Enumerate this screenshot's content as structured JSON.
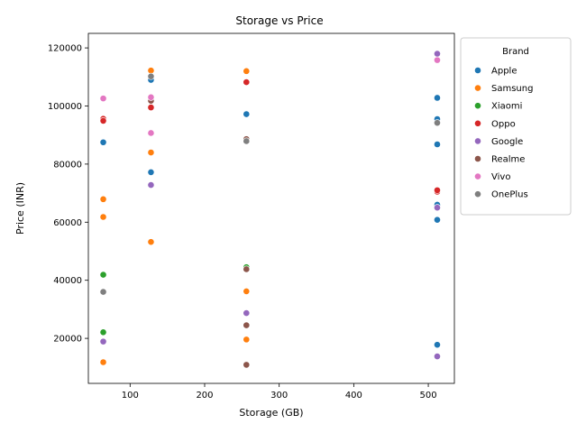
{
  "chart_data": {
    "type": "scatter",
    "title": "Storage vs Price",
    "xlabel": "Storage (GB)",
    "ylabel": "Price (INR)",
    "xlim": [
      44,
      535
    ],
    "ylim": [
      4500,
      125000
    ],
    "xticks": [
      100,
      200,
      300,
      400,
      500
    ],
    "xtick_labels": [
      "100",
      "200",
      "300",
      "400",
      "500"
    ],
    "yticks": [
      20000,
      40000,
      60000,
      80000,
      100000,
      120000
    ],
    "ytick_labels": [
      "20000",
      "40000",
      "60000",
      "80000",
      "100000",
      "120000"
    ],
    "grid": false,
    "legend": {
      "title": "Brand",
      "placement": "outside right, top"
    },
    "series": [
      {
        "name": "Apple",
        "color": "#1f77b4",
        "points": [
          [
            64,
            87500
          ],
          [
            128,
            109000
          ],
          [
            128,
            77200
          ],
          [
            256,
            97200
          ],
          [
            512,
            102800
          ],
          [
            512,
            95500
          ],
          [
            512,
            86800
          ],
          [
            512,
            66000
          ],
          [
            512,
            60800
          ],
          [
            512,
            17800
          ]
        ]
      },
      {
        "name": "Samsung",
        "color": "#ff7f0e",
        "points": [
          [
            64,
            67900
          ],
          [
            64,
            61800
          ],
          [
            64,
            11800
          ],
          [
            128,
            112200
          ],
          [
            128,
            84000
          ],
          [
            128,
            53200
          ],
          [
            256,
            112000
          ],
          [
            256,
            36200
          ],
          [
            256,
            19600
          ]
        ]
      },
      {
        "name": "Xiaomi",
        "color": "#2ca02c",
        "points": [
          [
            64,
            41900
          ],
          [
            64,
            22100
          ],
          [
            256,
            44500
          ]
        ]
      },
      {
        "name": "Oppo",
        "color": "#d62728",
        "points": [
          [
            64,
            95600
          ],
          [
            64,
            94900
          ],
          [
            128,
            99500
          ],
          [
            256,
            108200
          ],
          [
            512,
            70500
          ],
          [
            512,
            71000
          ]
        ]
      },
      {
        "name": "Google",
        "color": "#9467bd",
        "points": [
          [
            64,
            18900
          ],
          [
            128,
            72800
          ],
          [
            256,
            28700
          ],
          [
            512,
            118000
          ],
          [
            512,
            65000
          ],
          [
            512,
            13800
          ]
        ]
      },
      {
        "name": "Realme",
        "color": "#8c564b",
        "points": [
          [
            128,
            101800
          ],
          [
            256,
            88600
          ],
          [
            256,
            43800
          ],
          [
            256,
            24500
          ],
          [
            256,
            10900
          ]
        ]
      },
      {
        "name": "Vivo",
        "color": "#e377c2",
        "points": [
          [
            64,
            102600
          ],
          [
            128,
            103000
          ],
          [
            128,
            90700
          ],
          [
            512,
            115800
          ]
        ]
      },
      {
        "name": "OnePlus",
        "color": "#7f7f7f",
        "points": [
          [
            64,
            36000
          ],
          [
            128,
            110200
          ],
          [
            256,
            87900
          ],
          [
            512,
            94200
          ]
        ]
      }
    ]
  }
}
